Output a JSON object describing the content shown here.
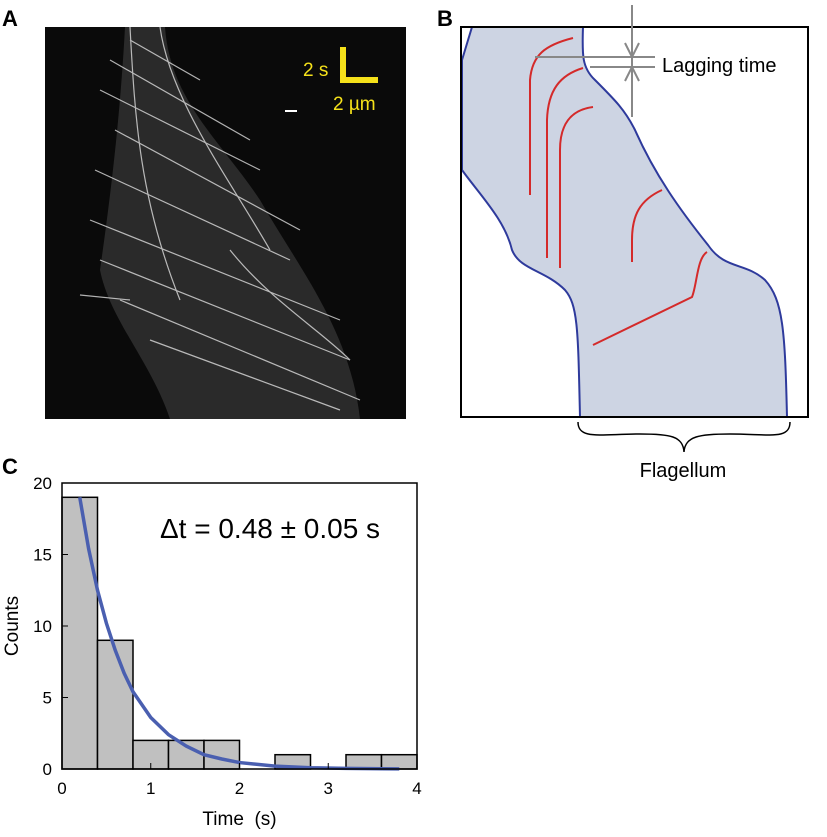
{
  "panels": {
    "a": {
      "label": "A",
      "scale_time": "2 s",
      "scale_length": "2 µm"
    },
    "b": {
      "label": "B",
      "lagging": "Lagging time",
      "flagellum": "Flagellum"
    },
    "c": {
      "label": "C"
    }
  },
  "chart_data": {
    "type": "histogram",
    "bins": [
      0,
      0.4,
      0.8,
      1.2,
      1.6,
      2.0,
      2.4,
      2.8,
      3.2,
      3.6,
      4.0
    ],
    "values": [
      19,
      9,
      2,
      2,
      2,
      0,
      1,
      0,
      1,
      1
    ],
    "color": "#c0c0c0",
    "xlim": [
      0,
      4
    ],
    "xticks": [
      0,
      1,
      2,
      3,
      4
    ],
    "ylim": [
      0,
      20
    ],
    "yticks": [
      0,
      5,
      10,
      15,
      20
    ],
    "xlabel": "Time  (s)",
    "ylabel": "Counts",
    "annotation": "Δt = 0.48 ± 0.05 s",
    "fit": {
      "color": "#4a5fb0",
      "x": [
        0.2,
        0.3,
        0.4,
        0.5,
        0.6,
        0.7,
        0.8,
        1.0,
        1.2,
        1.4,
        1.6,
        1.8,
        2.0,
        2.4,
        2.8,
        3.2,
        3.8
      ],
      "values": [
        19,
        15.4,
        12.5,
        10.2,
        8.3,
        6.7,
        5.4,
        3.6,
        2.4,
        1.6,
        1.0,
        0.7,
        0.45,
        0.2,
        0.09,
        0.04,
        0.01
      ]
    }
  }
}
